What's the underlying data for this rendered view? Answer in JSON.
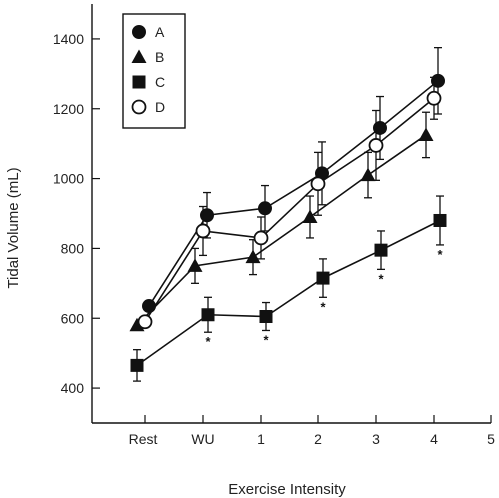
{
  "chart_data": {
    "type": "line",
    "ylabel": "Tidal Volume (mL)",
    "xlabel": "Exercise Intensity",
    "categories": [
      "Rest",
      "WU",
      "1",
      "2",
      "3",
      "4"
    ],
    "x_ticks": [
      "Rest",
      "WU",
      "1",
      "2",
      "3",
      "4",
      "5"
    ],
    "y_ticks": [
      400,
      600,
      800,
      1000,
      1200,
      1400
    ],
    "ylim": [
      300,
      1500
    ],
    "grid": false,
    "legend_position": "top-left",
    "series": [
      {
        "name": "A",
        "marker": "filled-circle",
        "values": [
          635,
          895,
          915,
          1015,
          1145,
          1280
        ],
        "errors": [
          null,
          65,
          65,
          90,
          90,
          95
        ]
      },
      {
        "name": "B",
        "marker": "filled-triangle",
        "values": [
          580,
          750,
          775,
          890,
          1010,
          1125
        ],
        "errors": [
          null,
          50,
          50,
          60,
          65,
          65
        ]
      },
      {
        "name": "C",
        "marker": "filled-square",
        "values": [
          465,
          610,
          605,
          715,
          795,
          880
        ],
        "errors": [
          45,
          50,
          40,
          55,
          55,
          70
        ],
        "significant": [
          false,
          true,
          true,
          true,
          true,
          true
        ]
      },
      {
        "name": "D",
        "marker": "open-circle",
        "values": [
          590,
          850,
          830,
          985,
          1095,
          1230
        ],
        "errors": [
          null,
          70,
          60,
          90,
          100,
          60
        ]
      }
    ],
    "significance_symbol": "*"
  }
}
